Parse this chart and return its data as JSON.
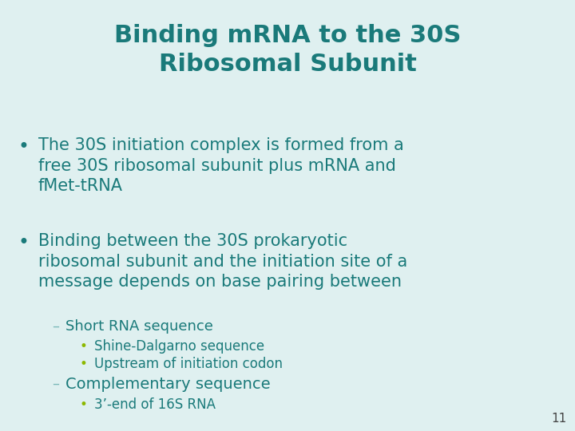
{
  "title_line1": "Binding mRNA to the 30S",
  "title_line2": "Ribosomal Subunit",
  "title_color": "#1a7a7a",
  "background_color": "#dff0f0",
  "bullet_color": "#1a7a7a",
  "sub_bullet_color": "#8cb800",
  "dash_color": "#7ab8b8",
  "page_number": "11",
  "dash1": "Short RNA sequence",
  "sub1a": "Shine-Dalgarno sequence",
  "sub1b": "Upstream of initiation codon",
  "dash2": "Complementary sequence",
  "sub2a": "3’-end of 16S RNA",
  "title_fontsize": 22,
  "bullet_fontsize": 15,
  "dash_fontsize": 13,
  "sub_fontsize": 12,
  "page_fontsize": 11
}
